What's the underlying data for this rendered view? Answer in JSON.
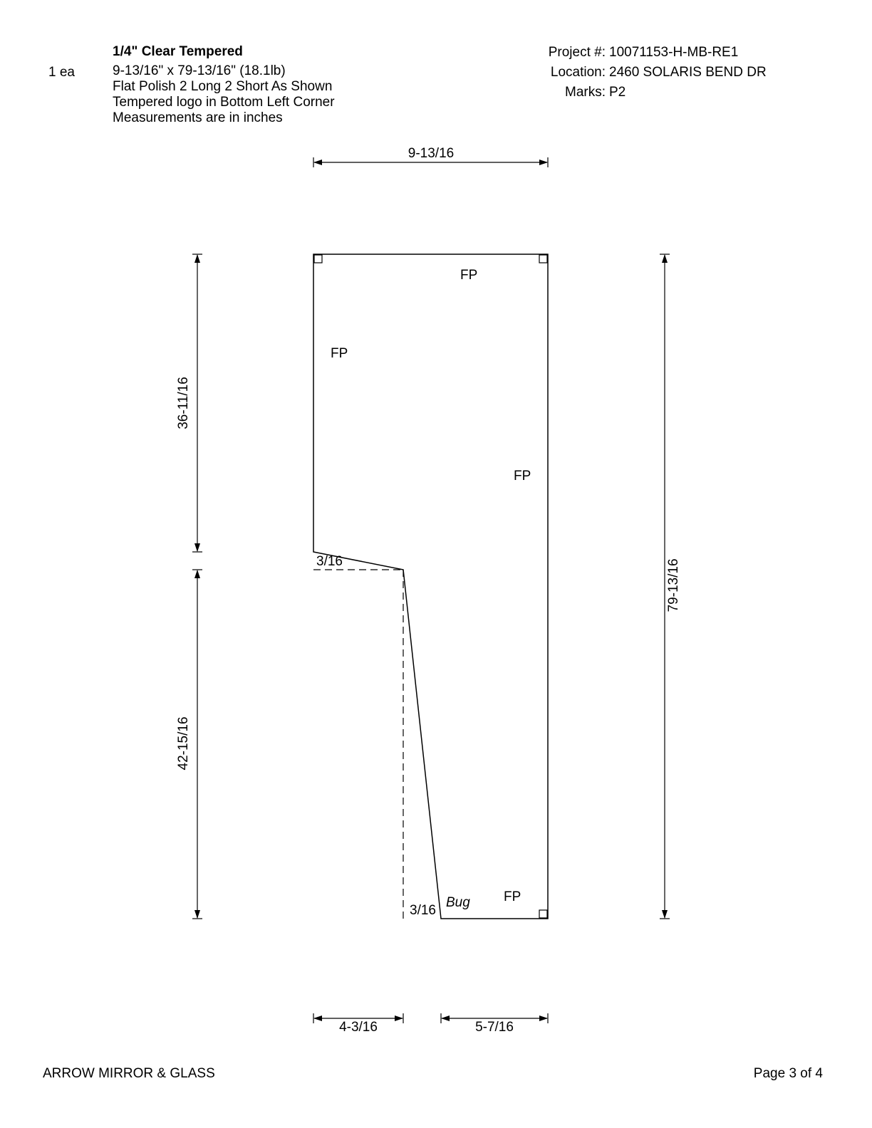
{
  "header": {
    "material": "1/4\" Clear Tempered",
    "quantity": "1 ea",
    "size_weight": "9-13/16\" x 79-13/16\"  (18.1lb)",
    "polish": "Flat Polish 2 Long 2 Short As Shown",
    "logo": "Tempered logo in Bottom Left Corner",
    "units_note": "Measurements are in inches",
    "project_label": "Project #:",
    "project_value": "10071153-H-MB-RE1",
    "location_label": "Location:",
    "location_value": "2460 SOLARIS BEND DR",
    "marks_label": "Marks:",
    "marks_value": "P2"
  },
  "drawing": {
    "dimensions": {
      "top_width": "9-13/16",
      "left_upper_height": "36-11/16",
      "left_lower_height": "42-15/16",
      "right_height": "79-13/16",
      "bottom_left_width": "4-3/16",
      "bottom_right_width": "5-7/16",
      "notch_offset": "3/16",
      "bottom_offset": "3/16"
    },
    "edge_labels": {
      "top": "FP",
      "left": "FP",
      "right": "FP",
      "bottom": "FP",
      "bug": "Bug"
    }
  },
  "footer": {
    "company": "ARROW MIRROR & GLASS",
    "page": "Page 3 of 4"
  }
}
